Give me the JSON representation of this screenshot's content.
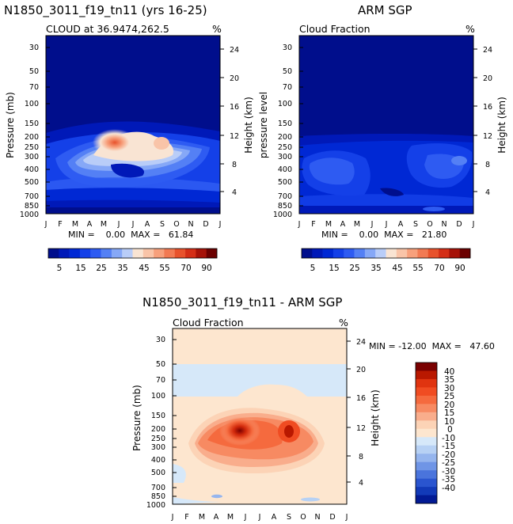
{
  "chart_data": [
    {
      "type": "contour",
      "title": "N1850_3011_f19_tn11 (yrs 16-25)",
      "subtitle": "CLOUD at 36.9474,262.5",
      "units": "%",
      "ylabel": "Pressure (mb)",
      "ylabel_right": "Height (km)",
      "x_ticks": [
        "J",
        "F",
        "M",
        "A",
        "M",
        "J",
        "J",
        "A",
        "S",
        "O",
        "N",
        "D",
        "J"
      ],
      "y_ticks": [
        "30",
        "50",
        "70",
        "100",
        "150",
        "200",
        "250",
        "300",
        "400",
        "500",
        "700",
        "850",
        "1000"
      ],
      "y_ticks_right": [
        "24",
        "20",
        "16",
        "12",
        "8",
        "4"
      ],
      "stats": "MIN =    0.00  MAX =   61.84",
      "min": 0.0,
      "max": 61.84
    },
    {
      "type": "contour",
      "title": "ARM SGP",
      "subtitle": "Cloud Fraction",
      "units": "%",
      "ylabel": "pressure level",
      "ylabel_right": "Height (km)",
      "x_ticks": [
        "J",
        "F",
        "M",
        "A",
        "M",
        "J",
        "J",
        "A",
        "S",
        "O",
        "N",
        "D",
        "J"
      ],
      "y_ticks": [
        "30",
        "50",
        "70",
        "100",
        "150",
        "200",
        "250",
        "300",
        "400",
        "500",
        "700",
        "850",
        "1000"
      ],
      "y_ticks_right": [
        "24",
        "20",
        "16",
        "12",
        "8",
        "4"
      ],
      "stats": "MIN =    0.00  MAX =   21.80",
      "min": 0.0,
      "max": 21.8
    },
    {
      "type": "contour",
      "title": "N1850_3011_f19_tn11 - ARM SGP",
      "subtitle": "Cloud Fraction",
      "units": "%",
      "ylabel": "Pressure (mb)",
      "ylabel_right": "Height (km)",
      "x_ticks": [
        "J",
        "F",
        "M",
        "A",
        "M",
        "J",
        "J",
        "A",
        "S",
        "O",
        "N",
        "D",
        "J"
      ],
      "y_ticks": [
        "30",
        "50",
        "70",
        "100",
        "150",
        "200",
        "250",
        "300",
        "400",
        "500",
        "700",
        "850",
        "1000"
      ],
      "y_ticks_right": [
        "24",
        "20",
        "16",
        "12",
        "8",
        "4"
      ],
      "stats": "MIN = -12.00  MAX =   47.60",
      "min": -12.0,
      "max": 47.6
    }
  ],
  "legend_top": {
    "labels": [
      "5",
      "15",
      "25",
      "35",
      "45",
      "55",
      "70",
      "90"
    ],
    "colors": [
      "#000e8c",
      "#0019b8",
      "#0028d4",
      "#1440e8",
      "#2e5bf2",
      "#5480f5",
      "#86a8f7",
      "#b9cdf8",
      "#f9e4d3",
      "#f9c4a8",
      "#f7a07c",
      "#f27a53",
      "#e8522c",
      "#d42e16",
      "#a61208",
      "#6b0000"
    ]
  },
  "legend_diff": {
    "labels": [
      "40",
      "35",
      "30",
      "25",
      "20",
      "15",
      "10",
      "0",
      "-10",
      "-15",
      "-20",
      "-25",
      "-30",
      "-35",
      "-40"
    ],
    "colors": [
      "#7a0000",
      "#b91800",
      "#e03410",
      "#f04c22",
      "#f56a3e",
      "#f78a62",
      "#f9ad8c",
      "#fcd3b6",
      "#fde6cf",
      "#d6e8f9",
      "#b7d1f4",
      "#95b5ee",
      "#6f95e6",
      "#4a74dc",
      "#2a55cf",
      "#123ab8",
      "#021a94"
    ]
  }
}
